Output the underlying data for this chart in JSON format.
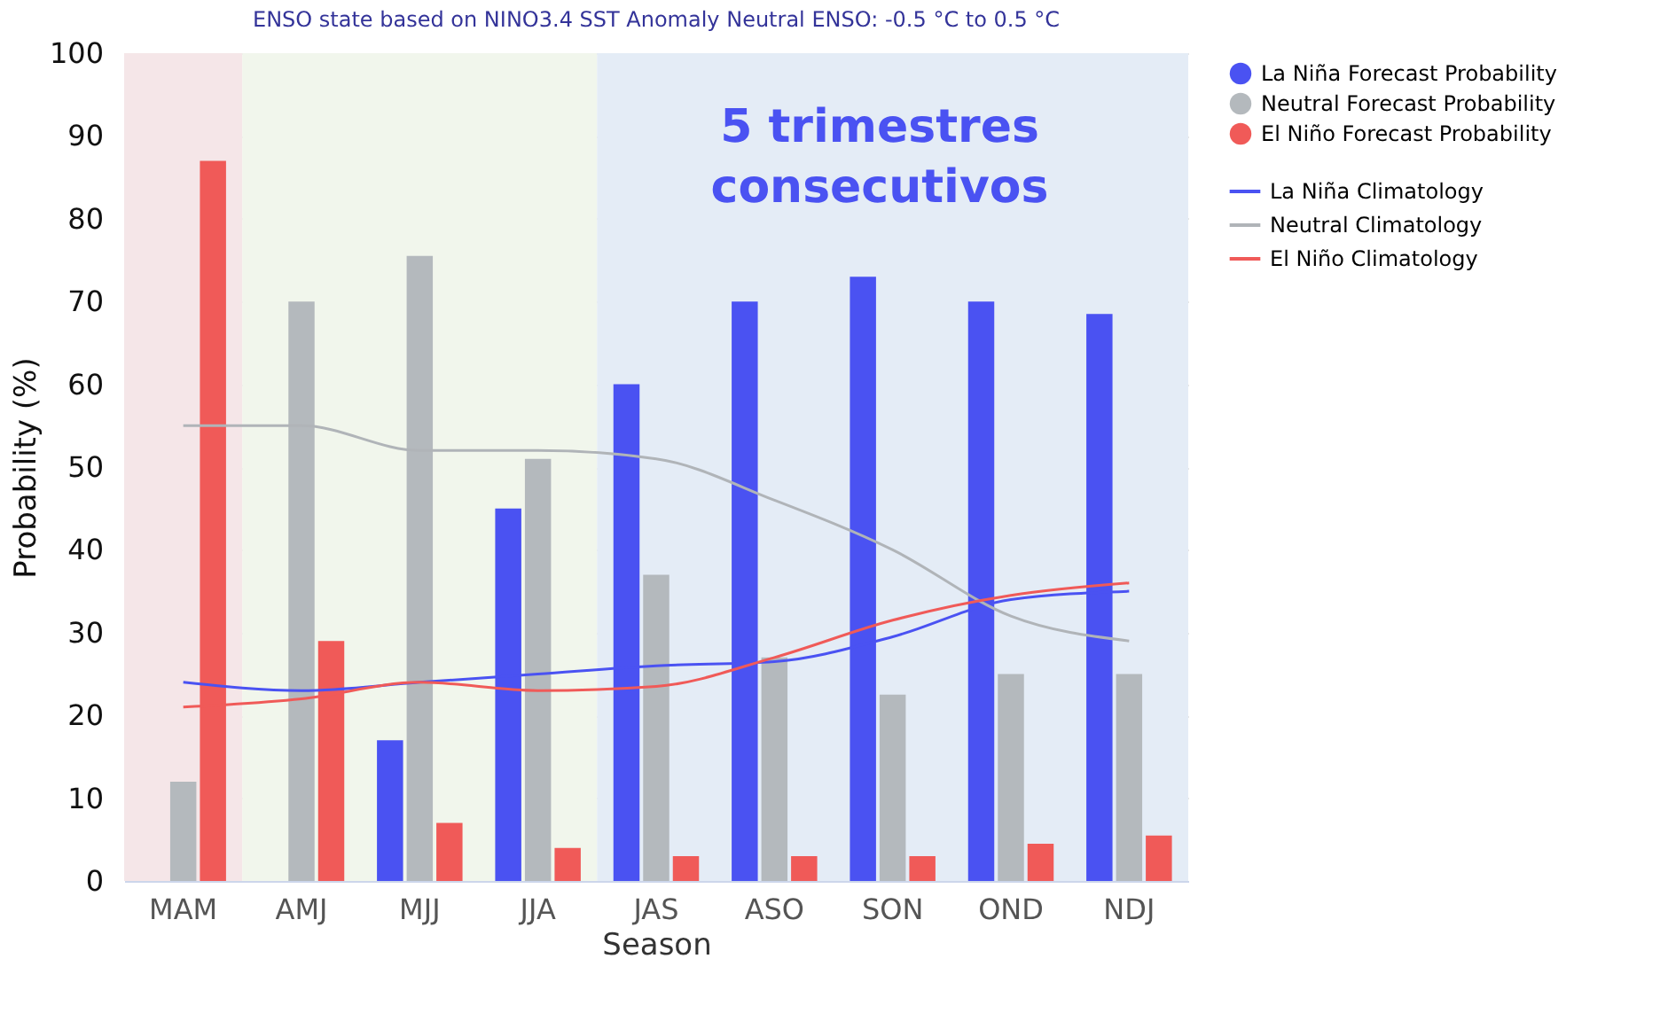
{
  "chart_data": {
    "type": "bar",
    "title": "ENSO state based on NINO3.4 SST Anomaly Neutral ENSO: -0.5 °C to 0.5 °C",
    "xlabel": "Season",
    "ylabel": "Probability (%)",
    "categories": [
      "MAM",
      "AMJ",
      "MJJ",
      "JJA",
      "JAS",
      "ASO",
      "SON",
      "OND",
      "NDJ"
    ],
    "series": [
      {
        "name": "La Niña Forecast Probability",
        "color": "#4a52f2",
        "values": [
          0,
          0,
          17,
          45,
          60,
          70,
          73,
          70,
          68.5
        ]
      },
      {
        "name": "Neutral Forecast Probability",
        "color": "#b4b9bd",
        "values": [
          12,
          70,
          75.5,
          51,
          37,
          27,
          22.5,
          25,
          25
        ]
      },
      {
        "name": "El Niño Forecast Probability",
        "color": "#f05a58",
        "values": [
          87,
          29,
          7,
          4,
          3,
          3,
          3,
          4.5,
          5.5
        ]
      },
      {
        "name": "La Niña Climatology",
        "type": "line",
        "color": "#4a52f2",
        "values": [
          24,
          23,
          24,
          25,
          26,
          26.5,
          29.5,
          34,
          35
        ]
      },
      {
        "name": "Neutral Climatology",
        "type": "line",
        "color": "#b0b4b8",
        "values": [
          55,
          55,
          52,
          52,
          51,
          46,
          40,
          32,
          29
        ]
      },
      {
        "name": "El Niño Climatology",
        "type": "line",
        "color": "#f05a58",
        "values": [
          21,
          22,
          24,
          23,
          23.5,
          27,
          31.5,
          34.5,
          36
        ]
      }
    ],
    "bands": [
      {
        "axis": "x",
        "from": "MAM",
        "to": "MAM",
        "color": "#f5e6e8"
      },
      {
        "axis": "x",
        "from": "AMJ",
        "to": "JJA",
        "color": "#f1f6ec"
      },
      {
        "axis": "x",
        "from": "JAS",
        "to": "NDJ",
        "color": "#e4ecf6"
      }
    ],
    "annotations": [
      "5 trimestres\nconsecutivos"
    ],
    "ylim": [
      0,
      100
    ],
    "yticks": [
      0,
      10,
      20,
      30,
      40,
      50,
      60,
      70,
      80,
      90,
      100
    ],
    "grid": "y",
    "legend": "top right"
  }
}
